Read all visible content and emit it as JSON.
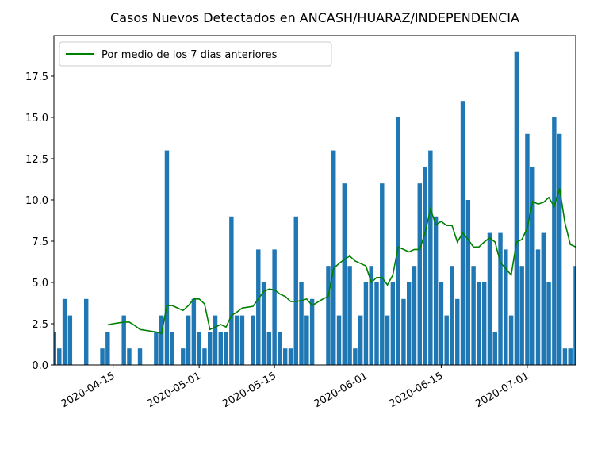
{
  "chart_data": {
    "type": "bar_line",
    "title": "Casos Nuevos Detectados en ANCASH/HUARAZ/INDEPENDENCIA",
    "x": [
      "2020-04-04",
      "2020-04-05",
      "2020-04-06",
      "2020-04-07",
      "2020-04-08",
      "2020-04-09",
      "2020-04-10",
      "2020-04-11",
      "2020-04-12",
      "2020-04-13",
      "2020-04-14",
      "2020-04-15",
      "2020-04-16",
      "2020-04-17",
      "2020-04-18",
      "2020-04-19",
      "2020-04-20",
      "2020-04-21",
      "2020-04-22",
      "2020-04-23",
      "2020-04-24",
      "2020-04-25",
      "2020-04-26",
      "2020-04-27",
      "2020-04-28",
      "2020-04-29",
      "2020-04-30",
      "2020-05-01",
      "2020-05-02",
      "2020-05-03",
      "2020-05-04",
      "2020-05-05",
      "2020-05-06",
      "2020-05-07",
      "2020-05-08",
      "2020-05-09",
      "2020-05-10",
      "2020-05-11",
      "2020-05-12",
      "2020-05-13",
      "2020-05-14",
      "2020-05-15",
      "2020-05-16",
      "2020-05-17",
      "2020-05-18",
      "2020-05-19",
      "2020-05-20",
      "2020-05-21",
      "2020-05-22",
      "2020-05-23",
      "2020-05-24",
      "2020-05-25",
      "2020-05-26",
      "2020-05-27",
      "2020-05-28",
      "2020-05-29",
      "2020-05-30",
      "2020-05-31",
      "2020-06-01",
      "2020-06-02",
      "2020-06-03",
      "2020-06-04",
      "2020-06-05",
      "2020-06-06",
      "2020-06-07",
      "2020-06-08",
      "2020-06-09",
      "2020-06-10",
      "2020-06-11",
      "2020-06-12",
      "2020-06-13",
      "2020-06-14",
      "2020-06-15",
      "2020-06-16",
      "2020-06-17",
      "2020-06-18",
      "2020-06-19",
      "2020-06-20",
      "2020-06-21",
      "2020-06-22",
      "2020-06-23",
      "2020-06-24",
      "2020-06-25",
      "2020-06-26",
      "2020-06-27",
      "2020-06-28",
      "2020-06-29",
      "2020-06-30",
      "2020-07-01",
      "2020-07-02",
      "2020-07-03",
      "2020-07-04",
      "2020-07-05",
      "2020-07-06",
      "2020-07-07",
      "2020-07-08",
      "2020-07-09",
      "2020-07-10"
    ],
    "bars": {
      "color": "#1f77b4",
      "values": [
        2,
        1,
        4,
        3,
        0,
        0,
        4,
        0,
        0,
        1,
        2,
        0,
        0,
        3,
        1,
        0,
        1,
        0,
        0,
        2,
        3,
        13,
        2,
        0,
        1,
        3,
        4,
        2,
        1,
        2,
        3,
        2,
        2,
        9,
        3,
        3,
        0,
        3,
        7,
        5,
        2,
        7,
        2,
        1,
        1,
        9,
        5,
        3,
        4,
        0,
        0,
        6,
        13,
        3,
        11,
        6,
        1,
        3,
        5,
        6,
        5,
        11,
        3,
        5,
        15,
        4,
        5,
        6,
        11,
        12,
        13,
        9,
        5,
        3,
        6,
        4,
        16,
        10,
        6,
        5,
        5,
        8,
        2,
        8,
        7,
        3,
        19,
        6,
        14,
        12,
        7,
        8,
        5,
        15,
        14,
        1,
        1,
        6
      ]
    },
    "line": {
      "name": "Por medio de los 7 dias anteriores",
      "color": "#008000",
      "values": [
        null,
        null,
        null,
        null,
        null,
        null,
        null,
        null,
        null,
        null,
        2.43,
        2.5,
        2.55,
        2.6,
        2.6,
        2.4,
        2.15,
        2.1,
        2.05,
        2.0,
        1.9,
        3.6,
        3.6,
        3.45,
        3.3,
        3.6,
        4.0,
        4.0,
        3.7,
        2.15,
        2.3,
        2.45,
        2.3,
        3.0,
        3.2,
        3.45,
        3.5,
        3.55,
        4.0,
        4.45,
        4.6,
        4.55,
        4.3,
        4.15,
        3.85,
        3.85,
        3.9,
        4.0,
        3.6,
        3.8,
        4.0,
        4.15,
        5.85,
        6.15,
        6.4,
        6.6,
        6.3,
        6.15,
        6.0,
        5.0,
        5.3,
        5.3,
        4.85,
        5.45,
        7.15,
        7.0,
        6.85,
        7.0,
        7.0,
        8.0,
        9.45,
        8.5,
        8.7,
        8.45,
        8.45,
        7.45,
        8.0,
        7.6,
        7.15,
        7.15,
        7.45,
        7.7,
        7.45,
        6.2,
        5.85,
        5.45,
        7.45,
        7.6,
        8.3,
        9.9,
        9.75,
        9.85,
        10.15,
        9.6,
        10.7,
        8.6,
        7.3,
        7.15
      ]
    },
    "xlim": [
      "2020-04-04",
      "2020-07-10"
    ],
    "xticks": [
      "2020-04-15",
      "2020-05-01",
      "2020-05-15",
      "2020-06-01",
      "2020-06-15",
      "2020-07-01"
    ],
    "ylim": [
      0,
      19.95
    ],
    "yticks": [
      {
        "value": 0,
        "label": "0.0"
      },
      2.5,
      {
        "value": 5,
        "label": "5.0"
      },
      7.5,
      {
        "value": 10,
        "label": "10.0"
      },
      12.5,
      {
        "value": 15,
        "label": "15.0"
      },
      17.5
    ],
    "legend": "upper left"
  }
}
